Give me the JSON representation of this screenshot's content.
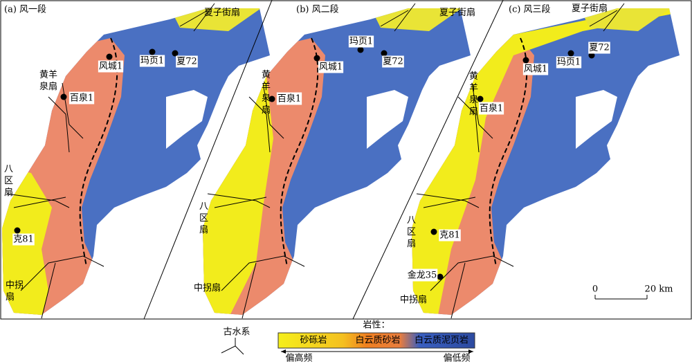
{
  "panels": [
    {
      "title": "(a) 风一段",
      "labels": [
        "夏子街扇",
        "风城1",
        "玛页1",
        "夏72",
        "黄羊泉扇",
        "百泉1",
        "八区扇",
        "克81",
        "中拐扇"
      ]
    },
    {
      "title": "(b) 风二段",
      "labels": [
        "夏子街扇",
        "玛页1",
        "风城1",
        "夏72",
        "黄羊泉扇",
        "百泉1",
        "八区扇",
        "中拐扇"
      ]
    },
    {
      "title": "(c) 风三段",
      "labels": [
        "夏子街扇",
        "夏72",
        "风城1",
        "玛页1",
        "黄羊泉扇",
        "百泉1",
        "八区扇",
        "克81",
        "金龙35",
        "中拐扇"
      ]
    }
  ],
  "scale": {
    "start": "0",
    "end": "20 km"
  },
  "legend": {
    "drainage": "古水系",
    "title": "岩性：",
    "classes": [
      "砂砾岩",
      "白云质砂岩",
      "白云质泥页岩"
    ],
    "low_end": "偏高频",
    "high_end": "偏低频"
  }
}
